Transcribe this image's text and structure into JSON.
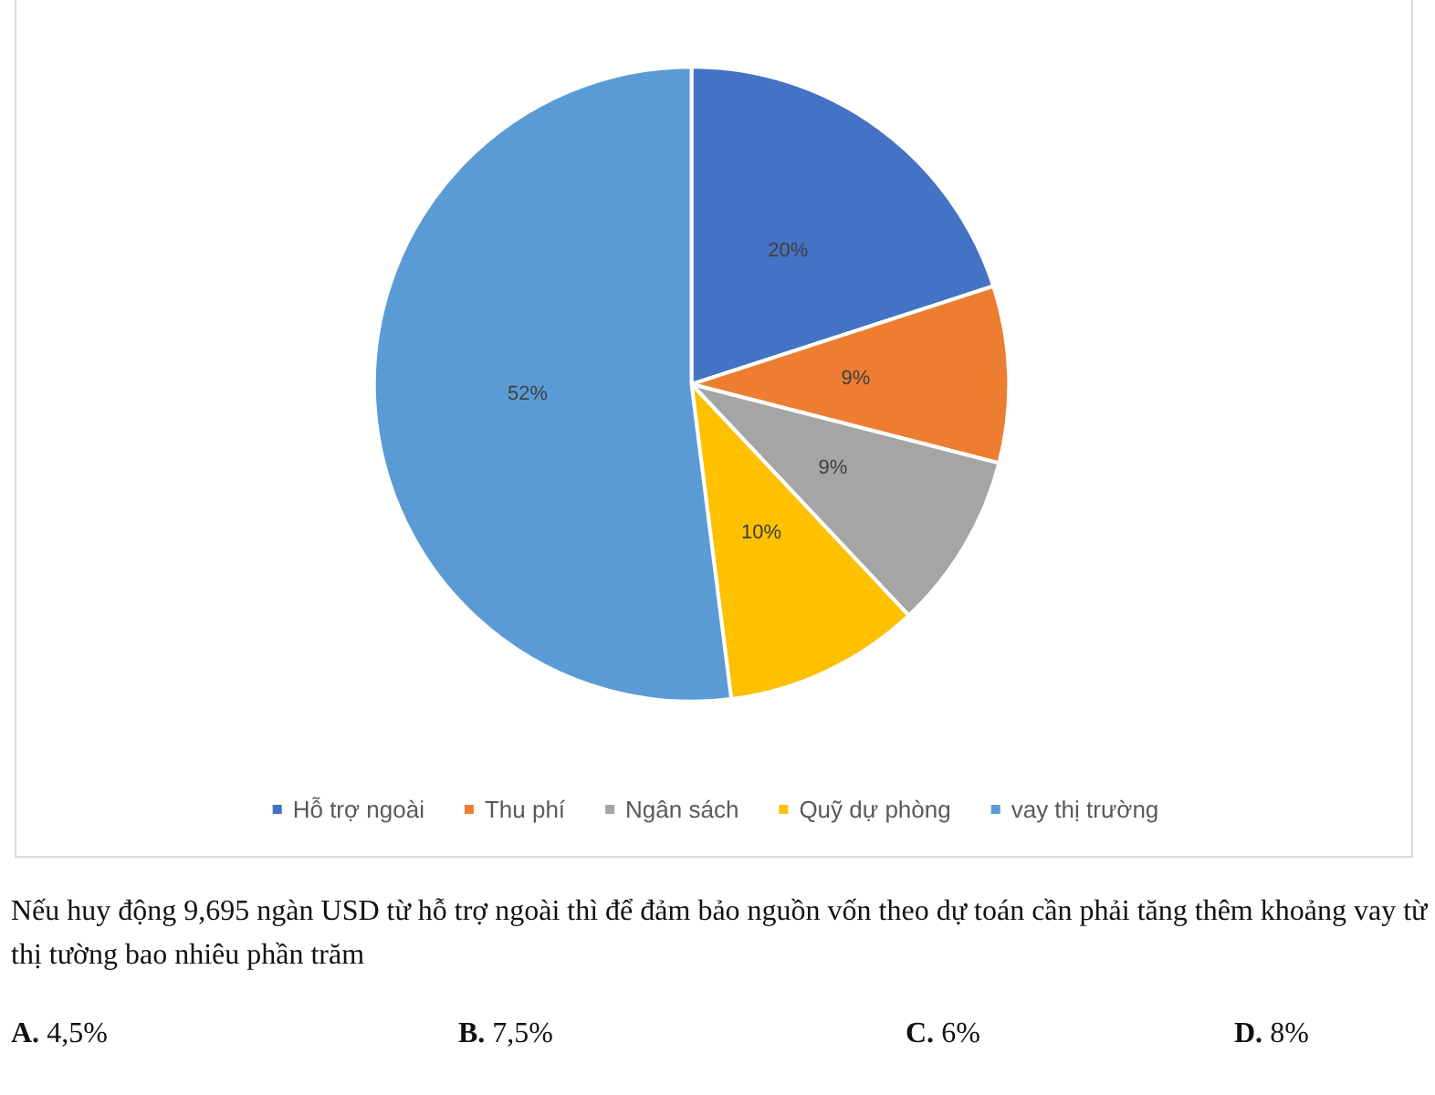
{
  "chart_data": {
    "type": "pie",
    "categories": [
      "Hỗ trợ ngoài",
      "Thu phí",
      "Ngân sách",
      "Quỹ dự phòng",
      "vay thị trường"
    ],
    "values": [
      20,
      9,
      9,
      10,
      52
    ],
    "colors": [
      "#4472c4",
      "#ed7d31",
      "#a5a5a5",
      "#ffc000",
      "#5b9bd5"
    ],
    "value_labels": [
      "20%",
      "9%",
      "9%",
      "10%",
      "52%"
    ],
    "legend": "bottom",
    "annotations": [
      "Nếu huy động 9,695 ngàn USD từ hỗ trợ ngoài thì để đảm bảo nguồn vốn theo dự toán cần phải tăng thêm khoảng vay từ thị tường bao nhiêu phần trăm",
      "A. 4,5%",
      "B. 7,5%",
      "C. 6%",
      "D. 8%"
    ]
  }
}
